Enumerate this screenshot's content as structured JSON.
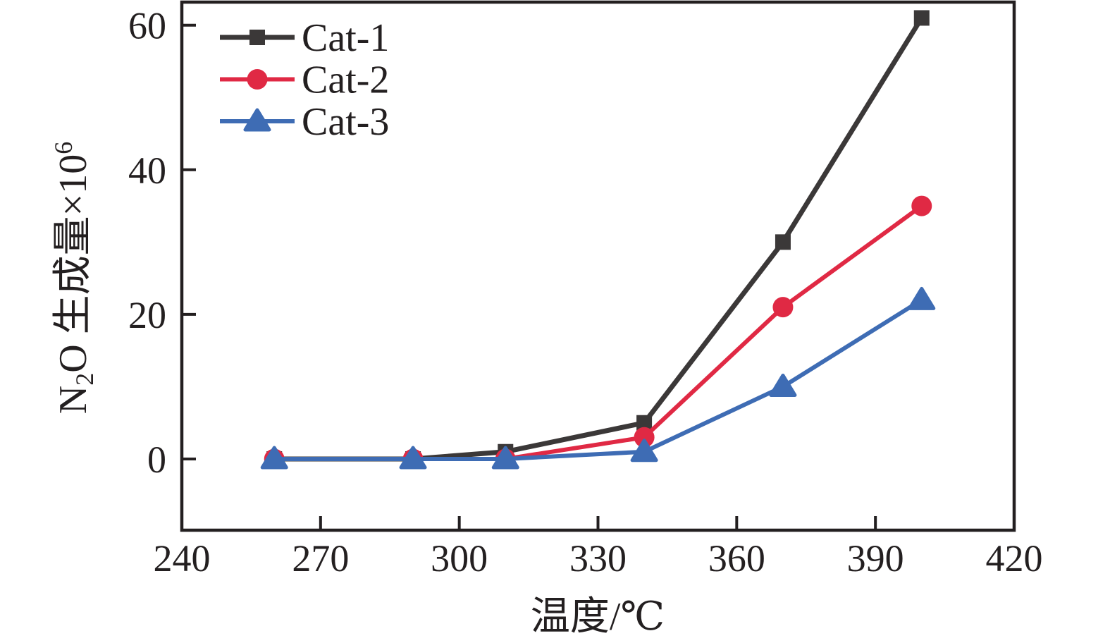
{
  "chart_data": {
    "type": "line",
    "x": [
      260,
      290,
      310,
      340,
      370,
      400
    ],
    "series": [
      {
        "name": "Cat-1",
        "marker": "square",
        "color": "#3b3838",
        "values": [
          0,
          0,
          1,
          5,
          30,
          61
        ]
      },
      {
        "name": "Cat-2",
        "marker": "circle",
        "color": "#e02944",
        "values": [
          0,
          0,
          0,
          3,
          21,
          35
        ]
      },
      {
        "name": "Cat-3",
        "marker": "triangle",
        "color": "#3e6cb4",
        "values": [
          0,
          0,
          0,
          1,
          10,
          22
        ]
      }
    ],
    "title": "",
    "xlabel": "温度/℃",
    "ylabel": "N₂O 生成量×10⁶",
    "ylabel_parts": [
      {
        "text": "N",
        "style": "normal"
      },
      {
        "text": "2",
        "style": "sub"
      },
      {
        "text": "O 生成量×10",
        "style": "normal"
      },
      {
        "text": "6",
        "style": "sup"
      }
    ],
    "x_ticks": [
      240,
      270,
      300,
      330,
      360,
      390,
      420
    ],
    "y_ticks": [
      0,
      20,
      40,
      60
    ],
    "xlim": [
      240,
      420
    ],
    "ylim": [
      -9.85,
      63.19
    ],
    "grid": false,
    "legend_position": "top-left",
    "background": "#ffffff",
    "axis_color": "#231f20"
  }
}
